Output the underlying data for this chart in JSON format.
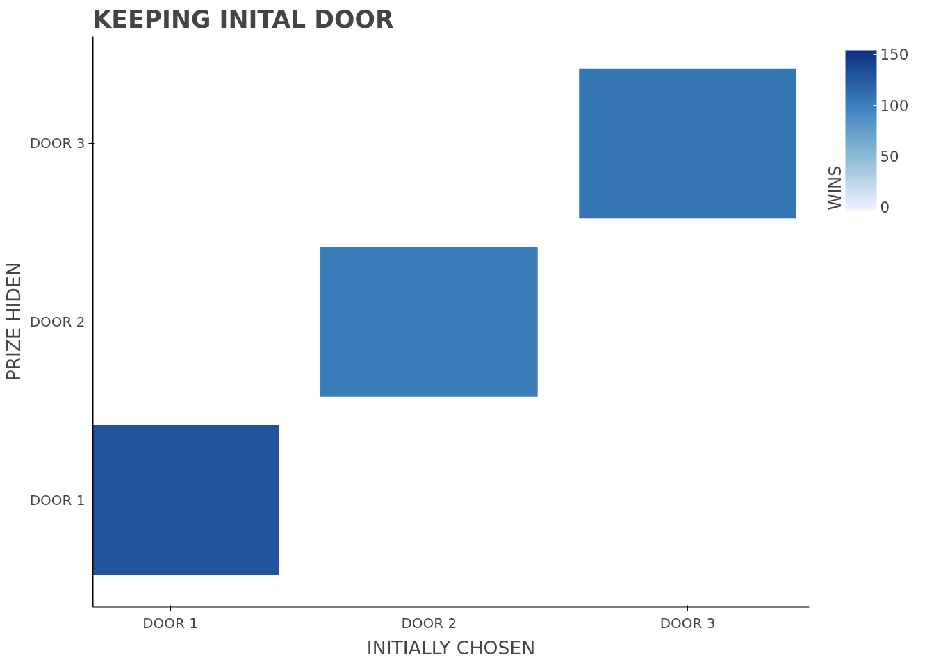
{
  "chart_data": {
    "type": "heatmap",
    "title": "KEEPING INITAL DOOR",
    "xlabel": "INITIALLY CHOSEN",
    "ylabel": "PRIZE HIDEN",
    "clabel": "WINS",
    "categories": [
      "DOOR 1",
      "DOOR 2",
      "DOOR 3"
    ],
    "y_categories": [
      "DOOR 3",
      "DOOR 2",
      "DOOR 1"
    ],
    "cells": [
      [
        null,
        null,
        107
      ],
      [
        null,
        103,
        null
      ],
      [
        130,
        null,
        null
      ]
    ],
    "clim": [
      -3,
      154
    ],
    "cticks": [
      0,
      50,
      100,
      150
    ],
    "grid": false
  }
}
